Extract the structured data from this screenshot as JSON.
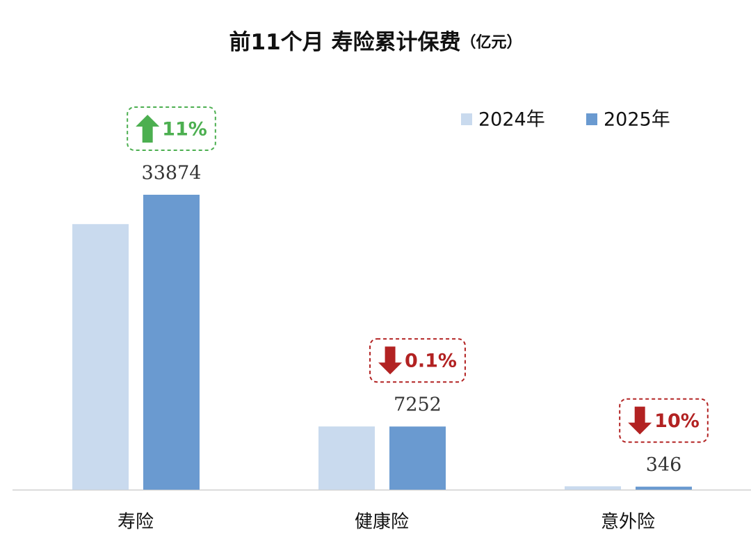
{
  "chart_data": {
    "type": "bar",
    "title": "前11个月 寿险累计保费",
    "unit": "（亿元）",
    "categories": [
      "寿险",
      "健康险",
      "意外险"
    ],
    "series": [
      {
        "name": "2024年",
        "color": "#c9daee",
        "values": [
          30500,
          7259,
          384
        ],
        "show_values": false
      },
      {
        "name": "2025年",
        "color": "#6a9ad0",
        "values": [
          33874,
          7252,
          346
        ],
        "show_values": true
      }
    ],
    "annotations": [
      {
        "text": "11%",
        "direction": "up",
        "color": "#4caf50"
      },
      {
        "text": "0.1%",
        "direction": "down",
        "color": "#b22222"
      },
      {
        "text": "10%",
        "direction": "down",
        "color": "#b22222"
      }
    ],
    "ylim": [
      0,
      40000
    ],
    "grid": false
  }
}
